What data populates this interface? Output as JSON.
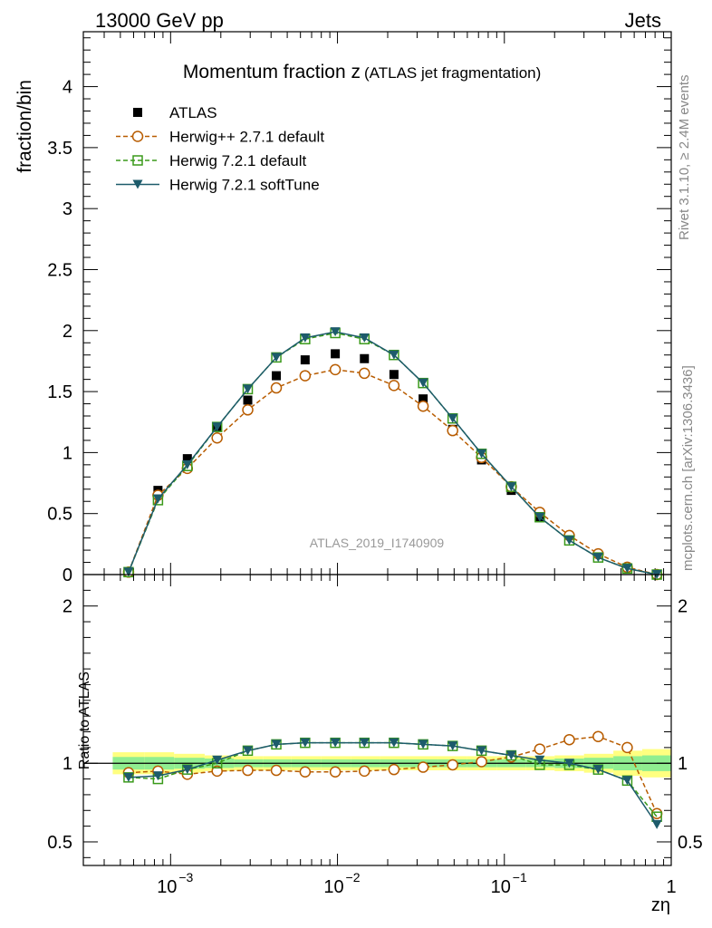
{
  "header": {
    "energy_label": "13000 GeV pp",
    "category_label": "Jets",
    "analysis_id": "ATLAS_2019_I1740909",
    "rivet_label": "Rivet 3.1.10, ≥ 2.4M events",
    "mcplots_label": "mcplots.cern.ch [arXiv:1306.3436]"
  },
  "chart_data": [
    {
      "type": "scatter",
      "panel": "main",
      "title": "Momentum fraction z",
      "subtitle": "(ATLAS jet fragmentation)",
      "ylabel": "fraction/bin",
      "xscale": "log",
      "xlim": [
        0.0003,
        1.0
      ],
      "ylim": [
        0,
        4.45
      ],
      "yticks": [
        0,
        0.5,
        1,
        1.5,
        2,
        2.5,
        3,
        3.5,
        4
      ],
      "ytick_labels": [
        "0",
        "0.5",
        "1",
        "1.5",
        "2",
        "2.5",
        "3",
        "3.5",
        "4"
      ],
      "legend_position": "top-left",
      "x": [
        0.00056,
        0.00084,
        0.00126,
        0.0019,
        0.0029,
        0.0043,
        0.0064,
        0.0097,
        0.0145,
        0.0218,
        0.0326,
        0.049,
        0.073,
        0.11,
        0.163,
        0.245,
        0.365,
        0.545,
        0.82
      ],
      "series": [
        {
          "name": "ATLAS",
          "color": "#000000",
          "marker": "square-filled",
          "line": "none",
          "values": [
            null,
            0.69,
            0.95,
            1.21,
            1.43,
            1.63,
            1.76,
            1.81,
            1.77,
            1.64,
            1.44,
            1.19,
            0.94,
            0.69,
            0.47,
            null,
            null,
            null,
            null
          ]
        },
        {
          "name": "Herwig++ 2.7.1 default",
          "color": "#b85c00",
          "marker": "circle-open",
          "line": "dashed",
          "values": [
            0.02,
            0.65,
            0.87,
            1.12,
            1.35,
            1.53,
            1.63,
            1.68,
            1.65,
            1.55,
            1.38,
            1.18,
            0.96,
            0.72,
            0.51,
            0.32,
            0.17,
            0.06,
            0.0
          ]
        },
        {
          "name": "Herwig 7.2.1 default",
          "color": "#3a9a1a",
          "marker": "square-open",
          "line": "dashed",
          "values": [
            0.02,
            0.61,
            0.89,
            1.21,
            1.52,
            1.78,
            1.93,
            1.98,
            1.93,
            1.8,
            1.57,
            1.28,
            0.99,
            0.72,
            0.47,
            0.28,
            0.14,
            0.05,
            0.0
          ]
        },
        {
          "name": "Herwig 7.2.1 softTune",
          "color": "#1d5b6b",
          "marker": "triangle-down-filled",
          "line": "solid",
          "values": [
            0.02,
            0.62,
            0.9,
            1.21,
            1.52,
            1.78,
            1.94,
            1.99,
            1.94,
            1.8,
            1.57,
            1.28,
            0.99,
            0.72,
            0.47,
            0.28,
            0.14,
            0.05,
            0.0
          ]
        }
      ]
    },
    {
      "type": "scatter",
      "panel": "ratio",
      "ylabel": "Ratio to ATLAS",
      "xlabel": "zη",
      "xscale": "log",
      "xlim": [
        0.0003,
        1.0
      ],
      "ylim": [
        0.35,
        2.2
      ],
      "yticks": [
        0.5,
        1,
        2
      ],
      "ytick_labels": [
        "0.5",
        "1",
        "2"
      ],
      "xticks": [
        0.001,
        0.01,
        0.1,
        1
      ],
      "xtick_labels": [
        {
          "base": "10",
          "exp": "−3"
        },
        {
          "base": "10",
          "exp": "−2"
        },
        {
          "base": "10",
          "exp": "−1"
        },
        {
          "base": "1",
          "exp": ""
        }
      ],
      "band_edges": [
        0.00045,
        0.0007,
        0.00105,
        0.0016,
        0.0024,
        0.0036,
        0.0053,
        0.008,
        0.012,
        0.018,
        0.027,
        0.04,
        0.06,
        0.09,
        0.135,
        0.2,
        0.3,
        0.45,
        0.67,
        1.0
      ],
      "band_inner": [
        0.04,
        0.04,
        0.035,
        0.03,
        0.025,
        0.025,
        0.025,
        0.025,
        0.025,
        0.025,
        0.025,
        0.025,
        0.025,
        0.025,
        0.025,
        0.03,
        0.035,
        0.045,
        0.05
      ],
      "band_outer": [
        0.07,
        0.07,
        0.06,
        0.05,
        0.045,
        0.045,
        0.045,
        0.045,
        0.045,
        0.045,
        0.045,
        0.045,
        0.045,
        0.045,
        0.045,
        0.05,
        0.06,
        0.08,
        0.09
      ],
      "band_colors": {
        "inner": "#90ee90",
        "outer": "#ffff80"
      },
      "x": [
        0.00056,
        0.00084,
        0.00126,
        0.0019,
        0.0029,
        0.0043,
        0.0064,
        0.0097,
        0.0145,
        0.0218,
        0.0326,
        0.049,
        0.073,
        0.11,
        0.163,
        0.245,
        0.365,
        0.545,
        0.82
      ],
      "series": [
        {
          "name": "Herwig++ 2.7.1 default",
          "color": "#b85c00",
          "marker": "circle-open",
          "line": "dashed",
          "values": [
            0.94,
            0.95,
            0.93,
            0.95,
            0.955,
            0.955,
            0.945,
            0.945,
            0.95,
            0.96,
            0.975,
            0.99,
            1.01,
            1.04,
            1.09,
            1.15,
            1.17,
            1.1,
            0.68
          ]
        },
        {
          "name": "Herwig 7.2.1 default",
          "color": "#3a9a1a",
          "marker": "square-open",
          "line": "dashed",
          "values": [
            0.91,
            0.9,
            0.96,
            1.0,
            1.08,
            1.12,
            1.13,
            1.13,
            1.13,
            1.13,
            1.12,
            1.11,
            1.08,
            1.05,
            0.99,
            0.99,
            0.96,
            0.89,
            0.66
          ]
        },
        {
          "name": "Herwig 7.2.1 softTune",
          "color": "#1d5b6b",
          "marker": "triangle-down-filled",
          "line": "solid",
          "values": [
            0.91,
            0.92,
            0.96,
            1.02,
            1.08,
            1.12,
            1.13,
            1.13,
            1.13,
            1.13,
            1.12,
            1.11,
            1.08,
            1.05,
            1.02,
            1.0,
            0.96,
            0.89,
            0.61
          ]
        }
      ]
    }
  ]
}
